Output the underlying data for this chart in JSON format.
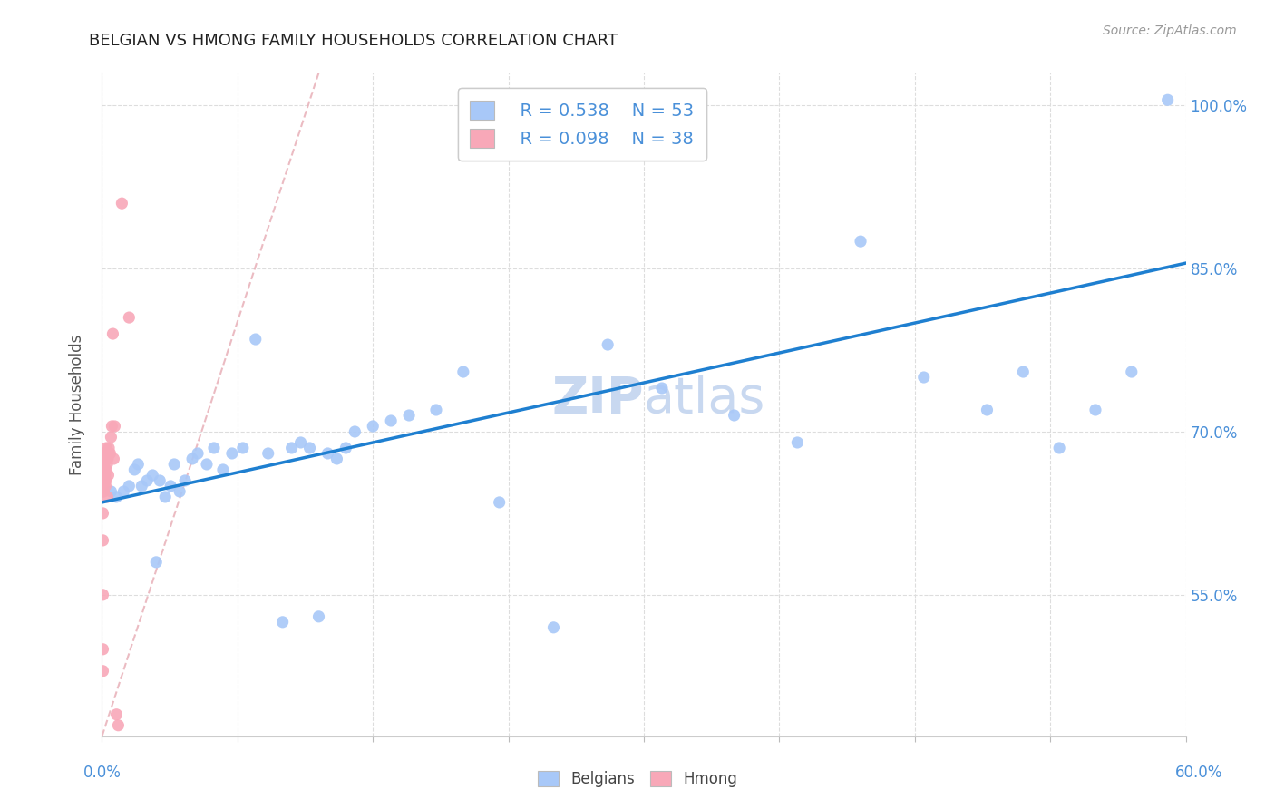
{
  "title": "BELGIAN VS HMONG FAMILY HOUSEHOLDS CORRELATION CHART",
  "source": "Source: ZipAtlas.com",
  "ylabel": "Family Households",
  "legend_belgian_r": "R = 0.538",
  "legend_belgian_n": "N = 53",
  "legend_hmong_r": "R = 0.098",
  "legend_hmong_n": "N = 38",
  "belgian_color": "#a8c8f8",
  "hmong_color": "#f8a8b8",
  "regression_line_color": "#1e7fd0",
  "diagonal_line_color": "#e8b0b8",
  "watermark_color": "#c8d8f0",
  "title_color": "#222222",
  "axis_label_color": "#4a90d9",
  "grid_color": "#dddddd",
  "belgians_x": [
    0.5,
    0.8,
    1.2,
    1.5,
    1.8,
    2.0,
    2.2,
    2.5,
    2.8,
    3.0,
    3.2,
    3.5,
    3.8,
    4.0,
    4.3,
    4.6,
    5.0,
    5.3,
    5.8,
    6.2,
    6.7,
    7.2,
    7.8,
    8.5,
    9.2,
    10.0,
    10.5,
    11.0,
    11.5,
    12.0,
    12.5,
    13.0,
    13.5,
    14.0,
    15.0,
    16.0,
    17.0,
    18.5,
    20.0,
    22.0,
    25.0,
    28.0,
    31.0,
    35.0,
    38.5,
    42.0,
    45.5,
    49.0,
    51.0,
    53.0,
    55.0,
    57.0,
    59.0
  ],
  "belgians_y": [
    64.5,
    64.0,
    64.5,
    65.0,
    66.5,
    67.0,
    65.0,
    65.5,
    66.0,
    58.0,
    65.5,
    64.0,
    65.0,
    67.0,
    64.5,
    65.5,
    67.5,
    68.0,
    67.0,
    68.5,
    66.5,
    68.0,
    68.5,
    78.5,
    68.0,
    52.5,
    68.5,
    69.0,
    68.5,
    53.0,
    68.0,
    67.5,
    68.5,
    70.0,
    70.5,
    71.0,
    71.5,
    72.0,
    75.5,
    63.5,
    52.0,
    78.0,
    74.0,
    71.5,
    69.0,
    87.5,
    75.0,
    72.0,
    75.5,
    68.5,
    72.0,
    75.5,
    100.5
  ],
  "hmong_x": [
    0.05,
    0.05,
    0.05,
    0.05,
    0.05,
    0.05,
    0.05,
    0.05,
    0.05,
    0.08,
    0.08,
    0.1,
    0.1,
    0.12,
    0.15,
    0.18,
    0.18,
    0.2,
    0.2,
    0.22,
    0.22,
    0.25,
    0.28,
    0.3,
    0.32,
    0.35,
    0.38,
    0.4,
    0.45,
    0.5,
    0.55,
    0.6,
    0.65,
    0.7,
    0.8,
    0.9,
    1.1,
    1.5
  ],
  "hmong_y": [
    48.0,
    50.0,
    55.0,
    60.0,
    62.5,
    64.5,
    66.0,
    67.0,
    68.0,
    65.0,
    67.5,
    64.5,
    67.0,
    66.5,
    65.5,
    66.0,
    67.5,
    65.0,
    68.0,
    65.5,
    66.5,
    68.5,
    67.0,
    64.0,
    67.5,
    66.0,
    68.5,
    68.0,
    68.0,
    69.5,
    70.5,
    79.0,
    67.5,
    70.5,
    44.0,
    43.0,
    91.0,
    80.5
  ],
  "xmin": 0.0,
  "xmax": 60.0,
  "ymin": 42.0,
  "ymax": 103.0,
  "regline_x0": 0.0,
  "regline_y0": 63.5,
  "regline_x1": 60.0,
  "regline_y1": 85.5,
  "diagline_x0": 0.0,
  "diagline_y0": 42.0,
  "diagline_x1": 12.0,
  "diagline_y1": 103.0
}
